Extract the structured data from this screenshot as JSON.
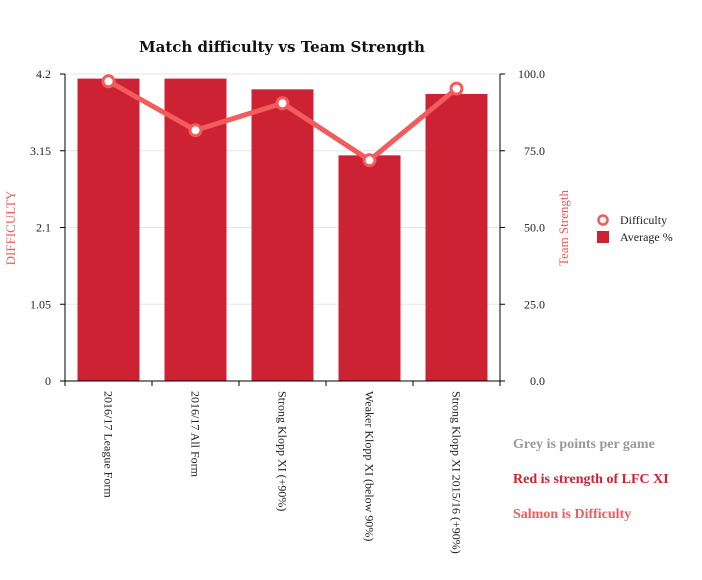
{
  "chart_data": {
    "type": "bar",
    "title": "Match difficulty vs Team Strength",
    "categories": [
      "2016/17 League Form",
      "2016/17 All Form",
      "Strong Klopp XI (+90%)",
      "Weaker Klopp XI (below 90%)",
      "Strong Klopp XI 2015/16 (+90%)"
    ],
    "series": [
      {
        "name": "Average %",
        "type": "bar",
        "axis": "right",
        "color": "#cc2233",
        "values": [
          98.5,
          98.5,
          95.0,
          73.5,
          93.5
        ]
      },
      {
        "name": "Difficulty",
        "type": "line",
        "axis": "left",
        "color": "#f25c5c",
        "values": [
          4.1,
          3.43,
          3.8,
          3.02,
          4.0
        ]
      }
    ],
    "ylabel": "DIFFICULTY",
    "y2label": "Team Strength",
    "ylim": [
      0,
      4.2
    ],
    "y2lim": [
      0,
      100
    ],
    "yticks": [
      "0",
      "1.05",
      "2.1",
      "3.15",
      "4.2"
    ],
    "y2ticks": [
      "0.0",
      "25.0",
      "50.0",
      "75.0",
      "100.0"
    ],
    "grid": true,
    "legend_position": "right"
  },
  "notes": [
    {
      "text": "Grey is points per game",
      "color": "#999999"
    },
    {
      "text": "Red is strength of LFC XI",
      "color": "#cc2233"
    },
    {
      "text": "Salmon is Difficulty",
      "color": "#f25c5c"
    }
  ]
}
